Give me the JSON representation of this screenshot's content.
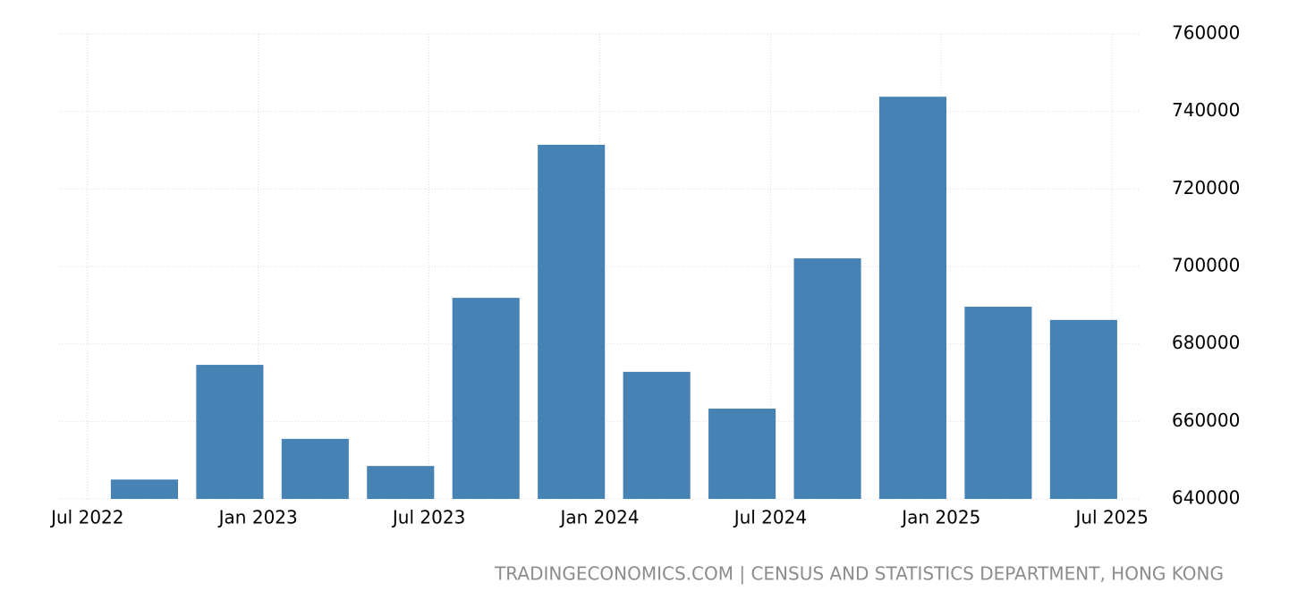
{
  "chart_data": {
    "type": "bar",
    "x": [
      "2022-09",
      "2022-12",
      "2023-03",
      "2023-06",
      "2023-09",
      "2023-12",
      "2024-03",
      "2024-06",
      "2024-09",
      "2024-12",
      "2025-03",
      "2025-06"
    ],
    "values": [
      645000,
      674600,
      655500,
      648500,
      691900,
      731400,
      672800,
      663300,
      702100,
      743800,
      689600,
      686200
    ],
    "color": "#4682b4",
    "xlim": [
      "2022-06",
      "2025-08"
    ],
    "xticks": [
      {
        "value": "2022-07",
        "label": "Jul 2022"
      },
      {
        "value": "2023-01",
        "label": "Jan 2023"
      },
      {
        "value": "2023-07",
        "label": "Jul 2023"
      },
      {
        "value": "2024-01",
        "label": "Jan 2024"
      },
      {
        "value": "2024-07",
        "label": "Jul 2024"
      },
      {
        "value": "2025-01",
        "label": "Jan 2025"
      },
      {
        "value": "2025-07",
        "label": "Jul 2025"
      }
    ],
    "ylim": [
      640000,
      760000
    ],
    "yticks": [
      640000,
      660000,
      680000,
      700000,
      720000,
      740000,
      760000
    ],
    "grid": true,
    "source": "TRADINGECONOMICS.COM | CENSUS AND STATISTICS DEPARTMENT, HONG KONG"
  }
}
